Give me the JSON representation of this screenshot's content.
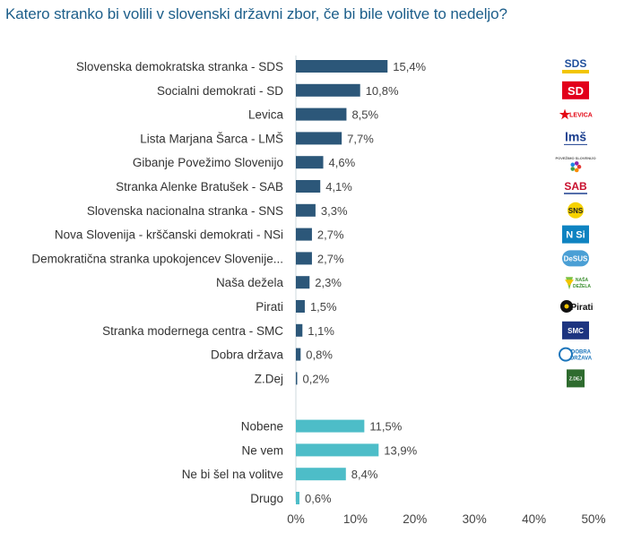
{
  "title": "Katero stranko bi volili v slovenski državni zbor, če bi bile volitve to nedeljo?",
  "colors": {
    "parties": "#2c5779",
    "other": "#4dbdc8",
    "title": "#1c5e8a"
  },
  "chart_data": {
    "type": "bar",
    "orientation": "horizontal",
    "title": "Katero stranko bi volili v slovenski državni zbor, če bi bile volitve to nedeljo?",
    "xlim": [
      0,
      50
    ],
    "xticks": [
      "0%",
      "10%",
      "20%",
      "30%",
      "40%",
      "50%"
    ],
    "groups": [
      {
        "name": "parties",
        "color": "#2c5779",
        "bars": [
          {
            "label": "Slovenska demokratska stranka - SDS",
            "value": 15.4,
            "value_label": "15,4%",
            "logo": "SDS"
          },
          {
            "label": "Socialni demokrati - SD",
            "value": 10.8,
            "value_label": "10,8%",
            "logo": "SD"
          },
          {
            "label": "Levica",
            "value": 8.5,
            "value_label": "8,5%",
            "logo": "LEVICA"
          },
          {
            "label": "Lista Marjana Šarca - LMŠ",
            "value": 7.7,
            "value_label": "7,7%",
            "logo": "lmš"
          },
          {
            "label": "Gibanje Povežimo Slovenijo",
            "value": 4.6,
            "value_label": "4,6%",
            "logo": "POVEŽIMO SLOVENIJO"
          },
          {
            "label": "Stranka Alenke Bratušek - SAB",
            "value": 4.1,
            "value_label": "4,1%",
            "logo": "SAB"
          },
          {
            "label": "Slovenska nacionalna stranka - SNS",
            "value": 3.3,
            "value_label": "3,3%",
            "logo": "SNS"
          },
          {
            "label": "Nova Slovenija - krščanski demokrati - NSi",
            "value": 2.7,
            "value_label": "2,7%",
            "logo": "N Si"
          },
          {
            "label": "Demokratična stranka upokojencev Slovenije...",
            "value": 2.7,
            "value_label": "2,7%",
            "logo": "DeSUS"
          },
          {
            "label": "Naša dežela",
            "value": 2.3,
            "value_label": "2,3%",
            "logo": "NAŠA DEŽELA"
          },
          {
            "label": "Pirati",
            "value": 1.5,
            "value_label": "1,5%",
            "logo": "Pirati"
          },
          {
            "label": "Stranka modernega centra - SMC",
            "value": 1.1,
            "value_label": "1,1%",
            "logo": "SMC"
          },
          {
            "label": "Dobra država",
            "value": 0.8,
            "value_label": "0,8%",
            "logo": "DOBRA DRŽAVA"
          },
          {
            "label": "Z.Dej",
            "value": 0.2,
            "value_label": "0,2%",
            "logo": "Z.DEJ"
          }
        ]
      },
      {
        "name": "other",
        "color": "#4dbdc8",
        "bars": [
          {
            "label": "Nobene",
            "value": 11.5,
            "value_label": "11,5%"
          },
          {
            "label": "Ne vem",
            "value": 13.9,
            "value_label": "13,9%"
          },
          {
            "label": "Ne bi šel na volitve",
            "value": 8.4,
            "value_label": "8,4%"
          },
          {
            "label": "Drugo",
            "value": 0.6,
            "value_label": "0,6%"
          }
        ]
      }
    ]
  }
}
